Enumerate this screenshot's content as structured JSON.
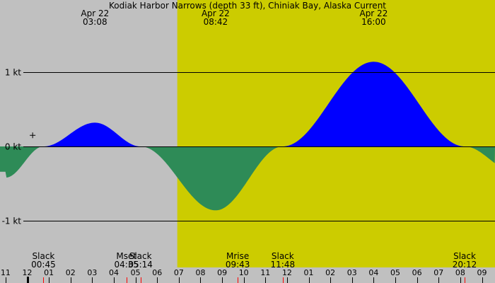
{
  "title": "Kodiak Harbor Narrows (depth 33 ft), Chiniak Bay, Alaska Current",
  "colors": {
    "night": "#c0c0c0",
    "day": "#cccc00",
    "flood": "#0000ff",
    "ebb": "#2e8b57",
    "axis_line": "#000000",
    "tick_red": "#ff0000"
  },
  "chart_data": {
    "type": "area",
    "title": "Kodiak Harbor Narrows (depth 33 ft), Chiniak Bay, Alaska Current",
    "x_unit": "hours (local time), Apr 21 23:00 to Apr 22 09:30",
    "x_range": [
      -1.0,
      33.5
    ],
    "ylim": [
      -1.9,
      1.95
    ],
    "y_unit": "kt",
    "y_ticks": [
      {
        "value": 1,
        "label": "1 kt"
      },
      {
        "value": 0,
        "label": "0 kt"
      },
      {
        "value": -1,
        "label": "-1 kt"
      }
    ],
    "daylight": [
      {
        "start": 6.93,
        "end": 33.5
      }
    ],
    "series": [
      {
        "points": [
          {
            "t": -1.0,
            "v": -0.42
          },
          {
            "t": 0.75,
            "v": 0.0
          },
          {
            "t": 3.13,
            "v": 0.32
          },
          {
            "t": 5.23,
            "v": 0.0
          },
          {
            "t": 8.7,
            "v": -0.86
          },
          {
            "t": 11.8,
            "v": 0.0
          },
          {
            "t": 16.0,
            "v": 1.14
          },
          {
            "t": 20.2,
            "v": 0.0
          },
          {
            "t": 22.5,
            "v": -0.34
          }
        ]
      }
    ],
    "top_events": [
      {
        "date": "Apr 22",
        "time": "03:08",
        "t": 3.13
      },
      {
        "date": "Apr 22",
        "time": "08:42",
        "t": 8.7
      },
      {
        "date": "Apr 22",
        "time": "16:00",
        "t": 16.0
      }
    ],
    "bottom_events": [
      {
        "name": "Slack",
        "time": "00:45",
        "t": 0.75
      },
      {
        "name": "Mset",
        "time": "04:35",
        "t": 4.58
      },
      {
        "name": "Slack",
        "time": "05:14",
        "t": 5.23
      },
      {
        "name": "Mrise",
        "time": "09:43",
        "t": 9.72
      },
      {
        "name": "Slack",
        "time": "11:48",
        "t": 11.8
      },
      {
        "name": "Slack",
        "time": "20:12",
        "t": 20.2
      }
    ],
    "hour_labels": [
      "11",
      "12",
      "01",
      "02",
      "03",
      "04",
      "05",
      "06",
      "07",
      "08",
      "09",
      "10",
      "11",
      "12",
      "01",
      "02",
      "03",
      "04",
      "05",
      "06",
      "07",
      "08",
      "09"
    ],
    "red_ticks": [
      0.75,
      4.58,
      5.23,
      9.72,
      11.8,
      20.2
    ],
    "midnight_marker": 0,
    "crosshair": {
      "t": 0.25,
      "v": 0.15
    }
  }
}
